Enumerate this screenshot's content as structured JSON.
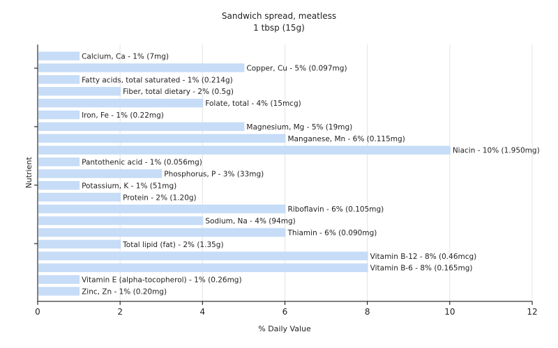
{
  "chart_data": {
    "type": "bar",
    "orientation": "horizontal",
    "title": "Sandwich spread, meatless",
    "subtitle": "1 tbsp (15g)",
    "xlabel": "% Daily Value",
    "ylabel": "Nutrient",
    "xlim": [
      0,
      12
    ],
    "xticks": [
      0,
      2,
      4,
      6,
      8,
      10,
      12
    ],
    "grid": "vertical",
    "bar_color": "#c6dcf7",
    "categories": [
      "Calcium, Ca",
      "Copper, Cu",
      "Fatty acids, total saturated",
      "Fiber, total dietary",
      "Folate, total",
      "Iron, Fe",
      "Magnesium, Mg",
      "Manganese, Mn",
      "Niacin",
      "Pantothenic acid",
      "Phosphorus, P",
      "Potassium, K",
      "Protein",
      "Riboflavin",
      "Sodium, Na",
      "Thiamin",
      "Total lipid (fat)",
      "Vitamin B-12",
      "Vitamin B-6",
      "Vitamin E (alpha-tocopherol)",
      "Zinc, Zn"
    ],
    "values": [
      1,
      5,
      1,
      2,
      4,
      1,
      5,
      6,
      10,
      1,
      3,
      1,
      2,
      6,
      4,
      6,
      2,
      8,
      8,
      1,
      1
    ],
    "labels": [
      "Calcium, Ca - 1% (7mg)",
      "Copper, Cu - 5% (0.097mg)",
      "Fatty acids, total saturated - 1% (0.214g)",
      "Fiber, total dietary - 2% (0.5g)",
      "Folate, total - 4% (15mcg)",
      "Iron, Fe - 1% (0.22mg)",
      "Magnesium, Mg - 5% (19mg)",
      "Manganese, Mn - 6% (0.115mg)",
      "Niacin - 10% (1.950mg)",
      "Pantothenic acid - 1% (0.056mg)",
      "Phosphorus, P - 3% (33mg)",
      "Potassium, K - 1% (51mg)",
      "Protein - 2% (1.20g)",
      "Riboflavin - 6% (0.105mg)",
      "Sodium, Na - 4% (94mg)",
      "Thiamin - 6% (0.090mg)",
      "Total lipid (fat) - 2% (1.35g)",
      "Vitamin B-12 - 8% (0.46mcg)",
      "Vitamin B-6 - 8% (0.165mg)",
      "Vitamin E (alpha-tocopherol) - 1% (0.26mg)",
      "Zinc, Zn - 1% (0.20mg)"
    ]
  }
}
